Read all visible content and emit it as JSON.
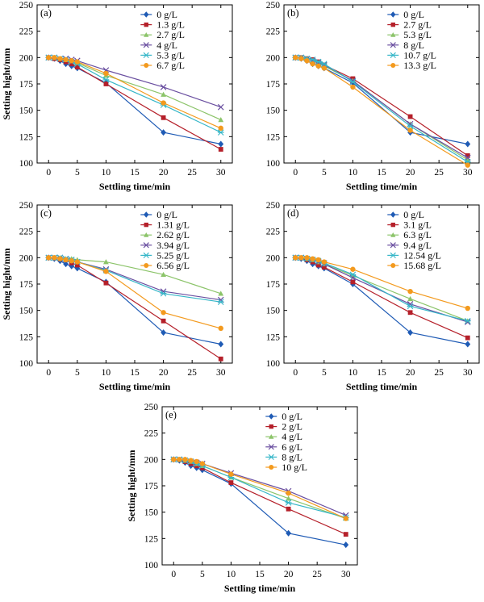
{
  "colors": {
    "blue": "#1f5bb5",
    "red": "#b5202a",
    "lightgreen": "#8cc46a",
    "purple": "#6a4fa0",
    "cyan": "#35b6c8",
    "orange": "#f39a1e"
  },
  "chart_data": [
    {
      "type": "line",
      "panel_label": "(a)",
      "xlabel": "Settling time/min",
      "ylabel": "Setting hight/mm",
      "xlim": [
        -2,
        32
      ],
      "ylim": [
        100,
        250
      ],
      "xticks": [
        0,
        5,
        10,
        15,
        20,
        25,
        30
      ],
      "yticks": [
        100,
        125,
        150,
        175,
        200,
        225,
        250
      ],
      "x": [
        0,
        1,
        2,
        3,
        4,
        5,
        10,
        20,
        30
      ],
      "legend_position": "top-right",
      "series": [
        {
          "name": "0 g/L",
          "marker": "diamond",
          "color": "#1f5bb5",
          "values": [
            200,
            199,
            197,
            194,
            192,
            190,
            176,
            129,
            118
          ]
        },
        {
          "name": "1.3 g/L",
          "marker": "square",
          "color": "#b5202a",
          "values": [
            200,
            199,
            198,
            196,
            194,
            191,
            175,
            143,
            113
          ]
        },
        {
          "name": "2.7 g/L",
          "marker": "triangle",
          "color": "#8cc46a",
          "values": [
            200,
            200,
            199,
            198,
            197,
            195,
            183,
            165,
            141
          ]
        },
        {
          "name": "4 g/L",
          "marker": "x",
          "color": "#6a4fa0",
          "values": [
            200,
            200,
            199,
            199,
            198,
            197,
            188,
            172,
            153
          ]
        },
        {
          "name": "5.3 g/L",
          "marker": "star",
          "color": "#35b6c8",
          "values": [
            200,
            200,
            199,
            198,
            196,
            194,
            179,
            155,
            129
          ]
        },
        {
          "name": "6.7 g/L",
          "marker": "circle",
          "color": "#f39a1e",
          "values": [
            200,
            200,
            199,
            198,
            197,
            196,
            185,
            157,
            133
          ]
        }
      ]
    },
    {
      "type": "line",
      "panel_label": "(b)",
      "xlabel": "Settling time/min",
      "ylabel": "",
      "xlim": [
        -2,
        32
      ],
      "ylim": [
        100,
        250
      ],
      "xticks": [
        0,
        5,
        10,
        15,
        20,
        25,
        30
      ],
      "yticks": [
        100,
        125,
        150,
        175,
        200,
        225,
        250
      ],
      "x": [
        0,
        1,
        2,
        3,
        4,
        5,
        10,
        20,
        30
      ],
      "legend_position": "top-right",
      "series": [
        {
          "name": "0 g/L",
          "marker": "diamond",
          "color": "#1f5bb5",
          "values": [
            200,
            199,
            197,
            194,
            192,
            190,
            176,
            129,
            118
          ]
        },
        {
          "name": "2.7 g/L",
          "marker": "square",
          "color": "#b5202a",
          "values": [
            200,
            200,
            199,
            198,
            196,
            193,
            180,
            144,
            107
          ]
        },
        {
          "name": "5.3 g/L",
          "marker": "triangle",
          "color": "#8cc46a",
          "values": [
            200,
            200,
            199,
            197,
            195,
            192,
            178,
            137,
            103
          ]
        },
        {
          "name": "8 g/L",
          "marker": "x",
          "color": "#6a4fa0",
          "values": [
            200,
            200,
            199,
            197,
            195,
            193,
            178,
            137,
            105
          ]
        },
        {
          "name": "10.7 g/L",
          "marker": "star",
          "color": "#35b6c8",
          "values": [
            200,
            200,
            199,
            198,
            196,
            194,
            177,
            135,
            101
          ]
        },
        {
          "name": "13.3 g/L",
          "marker": "circle",
          "color": "#f39a1e",
          "values": [
            200,
            199,
            197,
            194,
            192,
            190,
            172,
            131,
            98
          ]
        }
      ]
    },
    {
      "type": "line",
      "panel_label": "(c)",
      "xlabel": "Settling time/min",
      "ylabel": "Setting hight/mm",
      "xlim": [
        -2,
        32
      ],
      "ylim": [
        100,
        250
      ],
      "xticks": [
        0,
        5,
        10,
        15,
        20,
        25,
        30
      ],
      "yticks": [
        100,
        125,
        150,
        175,
        200,
        225,
        250
      ],
      "x": [
        0,
        1,
        2,
        3,
        4,
        5,
        10,
        20,
        30
      ],
      "legend_position": "top-right",
      "series": [
        {
          "name": "0 g/L",
          "marker": "diamond",
          "color": "#1f5bb5",
          "values": [
            200,
            199,
            197,
            194,
            192,
            190,
            177,
            129,
            118
          ]
        },
        {
          "name": "1.31 g/L",
          "marker": "square",
          "color": "#b5202a",
          "values": [
            200,
            200,
            199,
            198,
            195,
            193,
            176,
            140,
            104
          ]
        },
        {
          "name": "2.62 g/L",
          "marker": "triangle",
          "color": "#8cc46a",
          "values": [
            200,
            200,
            200,
            199,
            199,
            198,
            196,
            184,
            166
          ]
        },
        {
          "name": "3.94 g/L",
          "marker": "x",
          "color": "#6a4fa0",
          "values": [
            200,
            200,
            200,
            199,
            198,
            196,
            189,
            168,
            160
          ]
        },
        {
          "name": "5.25 g/L",
          "marker": "star",
          "color": "#35b6c8",
          "values": [
            200,
            200,
            200,
            199,
            198,
            196,
            188,
            166,
            158
          ]
        },
        {
          "name": "6.56 g/L",
          "marker": "circle",
          "color": "#f39a1e",
          "values": [
            200,
            200,
            199,
            198,
            197,
            196,
            187,
            148,
            133
          ]
        }
      ]
    },
    {
      "type": "line",
      "panel_label": "(d)",
      "xlabel": "Settling time/min",
      "ylabel": "",
      "xlim": [
        -2,
        32
      ],
      "ylim": [
        100,
        250
      ],
      "xticks": [
        0,
        5,
        10,
        15,
        20,
        25,
        30
      ],
      "yticks": [
        100,
        125,
        150,
        175,
        200,
        225,
        250
      ],
      "x": [
        0,
        1,
        2,
        3,
        4,
        5,
        10,
        20,
        30
      ],
      "legend_position": "top-right",
      "series": [
        {
          "name": "0 g/L",
          "marker": "diamond",
          "color": "#1f5bb5",
          "values": [
            200,
            199,
            197,
            194,
            192,
            190,
            175,
            129,
            118
          ]
        },
        {
          "name": "3.1 g/L",
          "marker": "square",
          "color": "#b5202a",
          "values": [
            200,
            200,
            198,
            196,
            193,
            191,
            177,
            148,
            124
          ]
        },
        {
          "name": "6.3 g/L",
          "marker": "triangle",
          "color": "#8cc46a",
          "values": [
            200,
            200,
            199,
            198,
            196,
            194,
            183,
            161,
            140
          ]
        },
        {
          "name": "9.4 g/L",
          "marker": "x",
          "color": "#6a4fa0",
          "values": [
            200,
            200,
            199,
            198,
            196,
            194,
            181,
            156,
            139
          ]
        },
        {
          "name": "12.54 g/L",
          "marker": "star",
          "color": "#35b6c8",
          "values": [
            200,
            200,
            199,
            198,
            197,
            195,
            184,
            154,
            140
          ]
        },
        {
          "name": "15.68 g/L",
          "marker": "circle",
          "color": "#f39a1e",
          "values": [
            200,
            200,
            200,
            199,
            198,
            196,
            189,
            168,
            152
          ]
        }
      ]
    },
    {
      "type": "line",
      "panel_label": "(e)",
      "xlabel": "Settling time/min",
      "ylabel": "Setting hight/mm",
      "xlim": [
        -2,
        32
      ],
      "ylim": [
        100,
        250
      ],
      "xticks": [
        0,
        5,
        10,
        15,
        20,
        25,
        30
      ],
      "yticks": [
        100,
        125,
        150,
        175,
        200,
        225,
        250
      ],
      "x": [
        0,
        1,
        2,
        3,
        4,
        5,
        10,
        20,
        30
      ],
      "legend_position": "top-right",
      "series": [
        {
          "name": "0 g/L",
          "marker": "diamond",
          "color": "#1f5bb5",
          "values": [
            200,
            199,
            197,
            194,
            192,
            190,
            177,
            130,
            119
          ]
        },
        {
          "name": "2 g/L",
          "marker": "square",
          "color": "#b5202a",
          "values": [
            200,
            200,
            198,
            196,
            194,
            192,
            178,
            153,
            129
          ]
        },
        {
          "name": "4 g/L",
          "marker": "triangle",
          "color": "#8cc46a",
          "values": [
            200,
            200,
            199,
            198,
            196,
            194,
            183,
            163,
            144
          ]
        },
        {
          "name": "6 g/L",
          "marker": "x",
          "color": "#6a4fa0",
          "values": [
            200,
            200,
            199,
            198,
            197,
            196,
            187,
            170,
            147
          ]
        },
        {
          "name": "8 g/L",
          "marker": "star",
          "color": "#35b6c8",
          "values": [
            200,
            200,
            199,
            198,
            196,
            194,
            183,
            159,
            145
          ]
        },
        {
          "name": "10 g/L",
          "marker": "circle",
          "color": "#f39a1e",
          "values": [
            200,
            200,
            200,
            199,
            198,
            196,
            186,
            168,
            144
          ]
        }
      ]
    }
  ]
}
